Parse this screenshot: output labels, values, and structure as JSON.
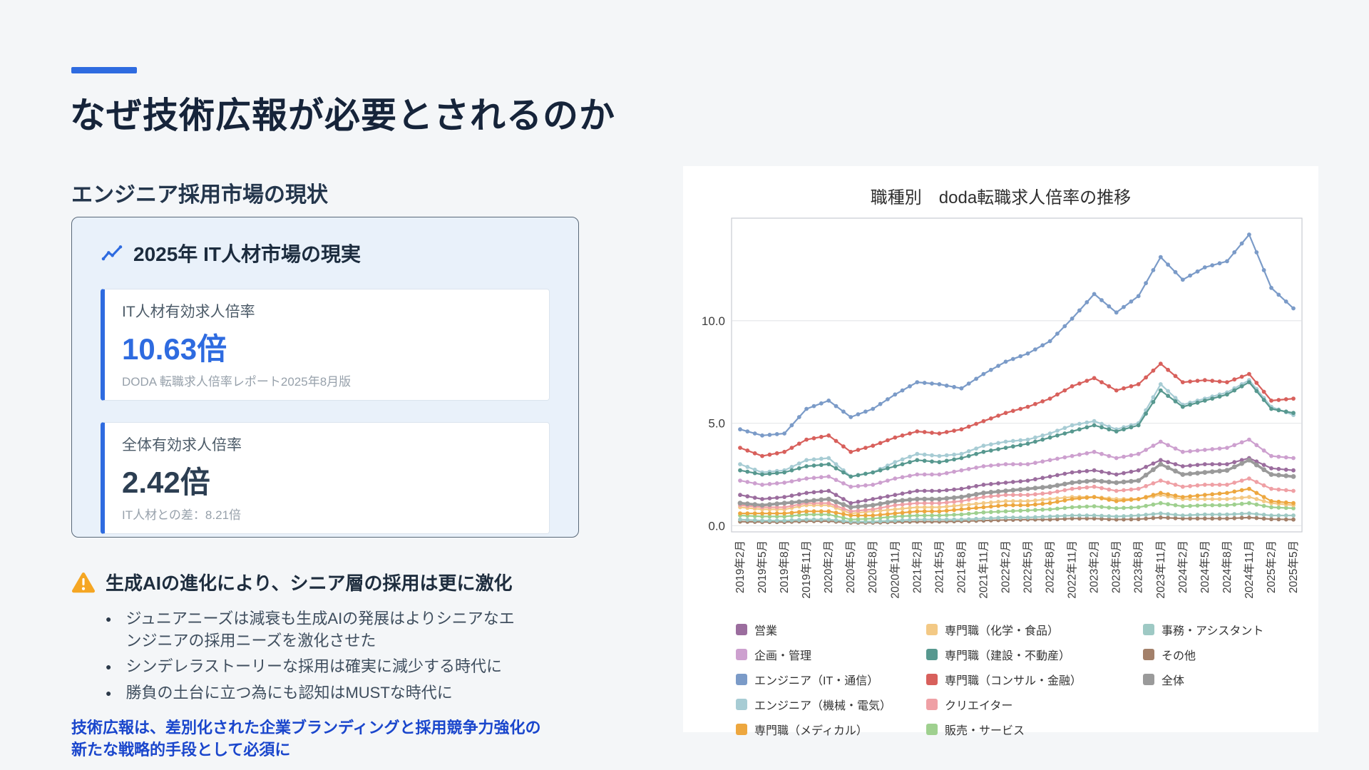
{
  "slide": {
    "title": "なぜ技術広報が必要とされるのか",
    "section_heading": "エンジニア採用市場の現状",
    "market_card": {
      "heading": "2025年 IT人材市場の現実",
      "stats": [
        {
          "label": "IT人材有効求人倍率",
          "value": "10.63倍",
          "caption": "DODA 転職求人倍率レポート2025年8月版"
        },
        {
          "label": "全体有効求人倍率",
          "value": "2.42倍",
          "caption": "IT人材との差：8.21倍"
        }
      ]
    },
    "warning": {
      "heading": "生成AIの進化により、シニア層の採用は更に激化",
      "bullets": [
        "ジュニアニーズは減衰も生成AIの発展はよりシニアなエンジニアの採用ニーズを激化させた",
        "シンデレラストーリーな採用は確実に減少する時代に",
        "勝負の土台に立つ為にも認知はMUSTな時代に"
      ]
    },
    "conclusion": "技術広報は、差別化された企業ブランディングと採用競争力強化の新たな戦略的手段として必須に"
  },
  "colors": {
    "accent_blue": "#2e6be0",
    "heading_dark": "#16243a",
    "conclusion_blue": "#1a46cc",
    "warning_orange": "#f5a623",
    "page_bg": "#f4f6f8",
    "card_bg": "#e9f1fa"
  },
  "chart_data": {
    "type": "line",
    "title": "職種別　doda転職求人倍率の推移",
    "x_labels": [
      "2019年2月",
      "2019年5月",
      "2019年8月",
      "2019年11月",
      "2020年2月",
      "2020年5月",
      "2020年8月",
      "2020年11月",
      "2021年2月",
      "2021年5月",
      "2021年8月",
      "2021年11月",
      "2022年2月",
      "2022年5月",
      "2022年8月",
      "2022年11月",
      "2023年2月",
      "2023年5月",
      "2023年8月",
      "2023年11月",
      "2024年2月",
      "2024年5月",
      "2024年8月",
      "2024年11月",
      "2025年2月",
      "2025年5月"
    ],
    "y_ticks": [
      0.0,
      5.0,
      10.0
    ],
    "y_tick_labels": [
      "0.0",
      "5.0",
      "10.0"
    ],
    "ylim": [
      -0.3,
      15.0
    ],
    "grid": true,
    "legend_position": "bottom",
    "series": [
      {
        "name": "営業",
        "color": "#9b6d9e",
        "width": 2.2,
        "values": [
          1.5,
          1.3,
          1.4,
          1.6,
          1.7,
          1.1,
          1.3,
          1.5,
          1.7,
          1.7,
          1.8,
          2.0,
          2.1,
          2.2,
          2.4,
          2.6,
          2.7,
          2.5,
          2.7,
          3.2,
          2.9,
          3.0,
          3.0,
          3.3,
          2.8,
          2.7
        ]
      },
      {
        "name": "企画・管理",
        "color": "#cda0cf",
        "width": 2.2,
        "values": [
          2.2,
          2.0,
          2.1,
          2.3,
          2.4,
          1.9,
          2.0,
          2.3,
          2.5,
          2.5,
          2.7,
          2.9,
          3.0,
          3.0,
          3.2,
          3.4,
          3.6,
          3.3,
          3.5,
          4.1,
          3.6,
          3.7,
          3.8,
          4.2,
          3.4,
          3.3
        ]
      },
      {
        "name": "エンジニア（IT・通信）",
        "color": "#7b9bc8",
        "width": 2.2,
        "values": [
          4.7,
          4.4,
          4.5,
          5.7,
          6.1,
          5.3,
          5.7,
          6.4,
          7.0,
          6.9,
          6.7,
          7.4,
          8.0,
          8.4,
          9.0,
          10.1,
          11.3,
          10.4,
          11.2,
          13.1,
          12.0,
          12.6,
          12.9,
          14.2,
          11.6,
          10.6
        ]
      },
      {
        "name": "エンジニア（機械・電気）",
        "color": "#a7ccd4",
        "width": 2.2,
        "values": [
          3.0,
          2.6,
          2.7,
          3.2,
          3.3,
          2.4,
          2.6,
          3.1,
          3.5,
          3.4,
          3.5,
          3.9,
          4.1,
          4.2,
          4.5,
          4.9,
          5.1,
          4.7,
          5.0,
          6.9,
          5.9,
          6.2,
          6.5,
          7.1,
          5.8,
          5.4
        ]
      },
      {
        "name": "専門職（メディカル）",
        "color": "#eda73f",
        "width": 2.2,
        "values": [
          0.6,
          0.6,
          0.6,
          0.7,
          0.7,
          0.5,
          0.5,
          0.6,
          0.7,
          0.7,
          0.8,
          0.9,
          1.0,
          1.0,
          1.1,
          1.3,
          1.4,
          1.2,
          1.3,
          1.6,
          1.4,
          1.5,
          1.6,
          1.8,
          1.2,
          1.1
        ]
      },
      {
        "name": "専門職（化学・食品）",
        "color": "#f3c985",
        "width": 2.2,
        "values": [
          0.9,
          0.8,
          0.8,
          1.0,
          1.0,
          0.6,
          0.7,
          0.8,
          0.9,
          0.9,
          1.0,
          1.1,
          1.2,
          1.2,
          1.3,
          1.4,
          1.4,
          1.3,
          1.3,
          1.5,
          1.3,
          1.3,
          1.3,
          1.4,
          1.1,
          1.0
        ]
      },
      {
        "name": "専門職（建設・不動産）",
        "color": "#57988f",
        "width": 2.2,
        "values": [
          2.7,
          2.5,
          2.6,
          2.9,
          3.0,
          2.4,
          2.6,
          2.9,
          3.2,
          3.1,
          3.3,
          3.6,
          3.8,
          4.0,
          4.3,
          4.6,
          4.9,
          4.6,
          4.9,
          6.6,
          5.8,
          6.1,
          6.4,
          7.0,
          5.7,
          5.5
        ]
      },
      {
        "name": "専門職（コンサル・金融）",
        "color": "#d8605c",
        "width": 2.2,
        "values": [
          3.8,
          3.4,
          3.6,
          4.2,
          4.4,
          3.6,
          3.9,
          4.3,
          4.6,
          4.5,
          4.7,
          5.1,
          5.5,
          5.8,
          6.2,
          6.8,
          7.2,
          6.6,
          6.9,
          7.9,
          7.0,
          7.1,
          7.0,
          7.4,
          6.1,
          6.2
        ]
      },
      {
        "name": "クリエイター",
        "color": "#efa0a5",
        "width": 2.2,
        "values": [
          1.0,
          0.9,
          0.9,
          1.1,
          1.1,
          0.7,
          0.8,
          1.0,
          1.1,
          1.1,
          1.2,
          1.4,
          1.5,
          1.5,
          1.6,
          1.8,
          1.9,
          1.7,
          1.8,
          2.2,
          1.9,
          2.0,
          2.0,
          2.3,
          1.8,
          1.7
        ]
      },
      {
        "name": "販売・サービス",
        "color": "#9fd08f",
        "width": 2.2,
        "values": [
          0.5,
          0.45,
          0.45,
          0.55,
          0.55,
          0.3,
          0.35,
          0.45,
          0.5,
          0.5,
          0.55,
          0.65,
          0.7,
          0.75,
          0.8,
          0.9,
          0.95,
          0.85,
          0.9,
          1.1,
          0.95,
          1.0,
          1.0,
          1.1,
          0.9,
          0.85
        ]
      },
      {
        "name": "事務・アシスタント",
        "color": "#9ec9c4",
        "width": 2.2,
        "values": [
          0.3,
          0.25,
          0.25,
          0.3,
          0.3,
          0.2,
          0.2,
          0.25,
          0.3,
          0.3,
          0.3,
          0.35,
          0.4,
          0.4,
          0.45,
          0.5,
          0.5,
          0.45,
          0.5,
          0.6,
          0.5,
          0.55,
          0.55,
          0.6,
          0.5,
          0.5
        ]
      },
      {
        "name": "その他",
        "color": "#a3806a",
        "width": 2.2,
        "values": [
          0.2,
          0.18,
          0.18,
          0.22,
          0.22,
          0.15,
          0.15,
          0.18,
          0.2,
          0.2,
          0.22,
          0.25,
          0.28,
          0.3,
          0.3,
          0.35,
          0.35,
          0.3,
          0.32,
          0.4,
          0.35,
          0.35,
          0.35,
          0.4,
          0.32,
          0.3
        ]
      },
      {
        "name": "全体",
        "color": "#9a9a9a",
        "width": 3.6,
        "values": [
          1.1,
          1.0,
          1.1,
          1.2,
          1.3,
          0.9,
          1.0,
          1.2,
          1.3,
          1.3,
          1.4,
          1.6,
          1.7,
          1.8,
          1.9,
          2.1,
          2.2,
          2.1,
          2.2,
          3.0,
          2.5,
          2.6,
          2.7,
          3.2,
          2.5,
          2.4
        ]
      }
    ],
    "legend_columns": [
      [
        0,
        1,
        2,
        3,
        4
      ],
      [
        5,
        6,
        7,
        8,
        9
      ],
      [
        10,
        11,
        12
      ]
    ],
    "draw_order": [
      11,
      10,
      9,
      5,
      4,
      8,
      3,
      0,
      1,
      12,
      6,
      7,
      2
    ]
  }
}
